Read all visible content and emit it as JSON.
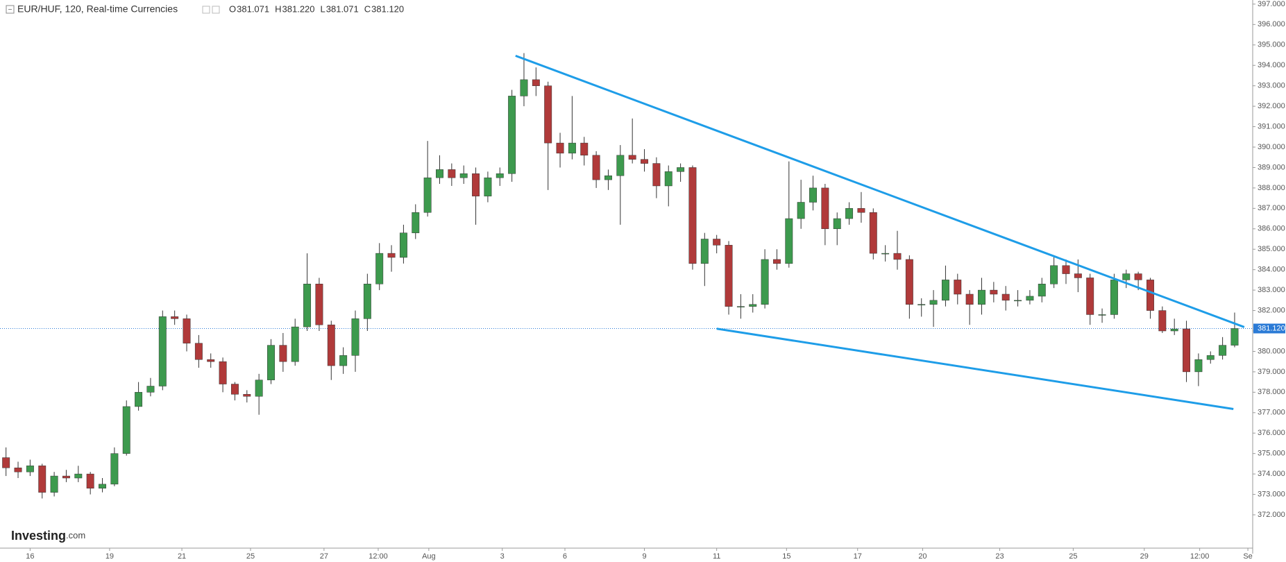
{
  "header": {
    "title": "EUR/HUF, 120, Real-time Currencies",
    "ohlc": [
      {
        "key": "O",
        "value": "381.071"
      },
      {
        "key": "H",
        "value": "381.220"
      },
      {
        "key": "L",
        "value": "381.071"
      },
      {
        "key": "C",
        "value": "381.120"
      }
    ]
  },
  "logo": {
    "name": "Investing",
    "suffix": ".com"
  },
  "chart_data": {
    "type": "candlestick",
    "up_color": "#3d9a4e",
    "down_color": "#b03a3a",
    "xlim": [
      0,
      104
    ],
    "xticks": [
      {
        "value": 2.5,
        "label": "16"
      },
      {
        "value": 9.1,
        "label": "19"
      },
      {
        "value": 15.1,
        "label": "21"
      },
      {
        "value": 20.8,
        "label": "25"
      },
      {
        "value": 26.9,
        "label": "27"
      },
      {
        "value": 31.4,
        "label": "12:00"
      },
      {
        "value": 35.6,
        "label": "Aug"
      },
      {
        "value": 41.7,
        "label": "3"
      },
      {
        "value": 46.9,
        "label": "6"
      },
      {
        "value": 53.5,
        "label": "9"
      },
      {
        "value": 59.5,
        "label": "11"
      },
      {
        "value": 65.3,
        "label": "15"
      },
      {
        "value": 71.2,
        "label": "17"
      },
      {
        "value": 76.6,
        "label": "20"
      },
      {
        "value": 83.0,
        "label": "23"
      },
      {
        "value": 89.1,
        "label": "25"
      },
      {
        "value": 95.0,
        "label": "29"
      },
      {
        "value": 99.6,
        "label": "12:00"
      },
      {
        "value": 103.6,
        "label": "Se"
      }
    ],
    "ylim": [
      370.37,
      397.2
    ],
    "yticks": [
      {
        "value": 372,
        "label": "372.000"
      },
      {
        "value": 373,
        "label": "373.000"
      },
      {
        "value": 374,
        "label": "374.000"
      },
      {
        "value": 375,
        "label": "375.000"
      },
      {
        "value": 376,
        "label": "376.000"
      },
      {
        "value": 377,
        "label": "377.000"
      },
      {
        "value": 378,
        "label": "378.000"
      },
      {
        "value": 379,
        "label": "379.000"
      },
      {
        "value": 380,
        "label": "380.000"
      },
      {
        "value": 381,
        "label": "381.000"
      },
      {
        "value": 382,
        "label": "382.000"
      },
      {
        "value": 383,
        "label": "383.000"
      },
      {
        "value": 384,
        "label": "384.000"
      },
      {
        "value": 385,
        "label": "385.000"
      },
      {
        "value": 386,
        "label": "386.000"
      },
      {
        "value": 387,
        "label": "387.000"
      },
      {
        "value": 388,
        "label": "388.000"
      },
      {
        "value": 389,
        "label": "389.000"
      },
      {
        "value": 390,
        "label": "390.000"
      },
      {
        "value": 391,
        "label": "391.000"
      },
      {
        "value": 392,
        "label": "392.000"
      },
      {
        "value": 393,
        "label": "393.000"
      },
      {
        "value": 394,
        "label": "394.000"
      },
      {
        "value": 395,
        "label": "395.000"
      },
      {
        "value": 396,
        "label": "396.000"
      },
      {
        "value": 397,
        "label": "397.000"
      }
    ],
    "last_price": {
      "value": 381.12,
      "label": "381.120",
      "color": "#2b7bd6"
    },
    "trendlines": [
      {
        "x": [
          42.8,
          103.3
        ],
        "y": [
          394.47,
          381.19
        ],
        "color": "#1e9de8"
      },
      {
        "x": [
          59.5,
          102.4
        ],
        "y": [
          381.11,
          377.18
        ],
        "color": "#1e9de8"
      }
    ],
    "ohlc": [
      [
        374.8,
        375.3,
        373.9,
        374.3
      ],
      [
        374.3,
        374.6,
        373.8,
        374.1
      ],
      [
        374.1,
        374.7,
        373.9,
        374.4
      ],
      [
        374.4,
        374.5,
        372.8,
        373.1
      ],
      [
        373.1,
        374.1,
        372.9,
        373.9
      ],
      [
        373.9,
        374.2,
        373.6,
        373.8
      ],
      [
        373.8,
        374.4,
        373.6,
        374.0
      ],
      [
        374.0,
        374.1,
        373.0,
        373.3
      ],
      [
        373.3,
        373.8,
        373.1,
        373.5
      ],
      [
        373.5,
        375.3,
        373.4,
        375.0
      ],
      [
        375.0,
        377.6,
        374.9,
        377.3
      ],
      [
        377.3,
        378.5,
        377.1,
        378.0
      ],
      [
        378.0,
        378.7,
        377.8,
        378.3
      ],
      [
        378.3,
        382.0,
        378.1,
        381.7
      ],
      [
        381.7,
        382.0,
        381.3,
        381.6
      ],
      [
        381.6,
        381.8,
        380.0,
        380.4
      ],
      [
        380.4,
        380.8,
        379.2,
        379.6
      ],
      [
        379.6,
        379.9,
        379.2,
        379.5
      ],
      [
        379.5,
        379.7,
        378.0,
        378.4
      ],
      [
        378.4,
        378.5,
        377.6,
        377.9
      ],
      [
        377.9,
        378.1,
        377.5,
        377.8
      ],
      [
        377.8,
        378.9,
        376.9,
        378.6
      ],
      [
        378.6,
        380.6,
        378.4,
        380.3
      ],
      [
        380.3,
        380.9,
        379.0,
        379.5
      ],
      [
        379.5,
        381.6,
        379.3,
        381.2
      ],
      [
        381.2,
        384.8,
        381.0,
        383.3
      ],
      [
        383.3,
        383.6,
        381.0,
        381.3
      ],
      [
        381.3,
        381.5,
        378.6,
        379.3
      ],
      [
        379.3,
        380.2,
        378.9,
        379.8
      ],
      [
        379.8,
        382.0,
        379.0,
        381.6
      ],
      [
        381.6,
        383.8,
        381.0,
        383.3
      ],
      [
        383.3,
        385.3,
        383.0,
        384.8
      ],
      [
        384.8,
        385.2,
        383.9,
        384.6
      ],
      [
        384.6,
        386.2,
        384.3,
        385.8
      ],
      [
        385.8,
        387.2,
        385.5,
        386.8
      ],
      [
        386.8,
        390.3,
        386.6,
        388.5
      ],
      [
        388.5,
        389.6,
        388.2,
        388.9
      ],
      [
        388.9,
        389.2,
        388.1,
        388.5
      ],
      [
        388.5,
        389.1,
        388.2,
        388.7
      ],
      [
        388.7,
        389.0,
        386.2,
        387.6
      ],
      [
        387.6,
        388.8,
        387.3,
        388.5
      ],
      [
        388.5,
        389.0,
        388.1,
        388.7
      ],
      [
        388.7,
        392.8,
        388.3,
        392.5
      ],
      [
        392.5,
        394.6,
        392.0,
        393.3
      ],
      [
        393.3,
        393.9,
        392.5,
        393.0
      ],
      [
        393.0,
        393.2,
        387.9,
        390.2
      ],
      [
        390.2,
        390.7,
        389.0,
        389.7
      ],
      [
        389.7,
        392.5,
        389.4,
        390.2
      ],
      [
        390.2,
        390.5,
        389.1,
        389.6
      ],
      [
        389.6,
        389.8,
        388.0,
        388.4
      ],
      [
        388.4,
        388.9,
        387.9,
        388.6
      ],
      [
        388.6,
        390.1,
        386.2,
        389.6
      ],
      [
        389.6,
        391.4,
        389.2,
        389.4
      ],
      [
        389.4,
        389.9,
        388.8,
        389.2
      ],
      [
        389.2,
        389.5,
        387.5,
        388.1
      ],
      [
        388.1,
        389.1,
        387.1,
        388.8
      ],
      [
        388.8,
        389.2,
        388.3,
        389.0
      ],
      [
        389.0,
        389.1,
        384.0,
        384.3
      ],
      [
        384.3,
        385.8,
        383.2,
        385.5
      ],
      [
        385.5,
        385.7,
        384.8,
        385.2
      ],
      [
        385.2,
        385.4,
        381.8,
        382.2
      ],
      [
        382.2,
        382.8,
        381.6,
        382.2
      ],
      [
        382.2,
        382.8,
        381.9,
        382.3
      ],
      [
        382.3,
        385.0,
        382.1,
        384.5
      ],
      [
        384.5,
        385.0,
        384.0,
        384.3
      ],
      [
        384.3,
        389.3,
        384.1,
        386.5
      ],
      [
        386.5,
        388.4,
        386.0,
        387.3
      ],
      [
        387.3,
        388.6,
        386.9,
        388.0
      ],
      [
        388.0,
        388.2,
        385.2,
        386.0
      ],
      [
        386.0,
        386.8,
        385.2,
        386.5
      ],
      [
        386.5,
        387.3,
        386.2,
        387.0
      ],
      [
        387.0,
        387.8,
        386.3,
        386.8
      ],
      [
        386.8,
        387.0,
        384.5,
        384.8
      ],
      [
        384.8,
        385.2,
        384.4,
        384.8
      ],
      [
        384.8,
        385.9,
        384.0,
        384.5
      ],
      [
        384.5,
        384.7,
        381.6,
        382.3
      ],
      [
        382.3,
        382.6,
        381.7,
        382.3
      ],
      [
        382.3,
        383.0,
        381.2,
        382.5
      ],
      [
        382.5,
        384.2,
        382.2,
        383.5
      ],
      [
        383.5,
        383.8,
        382.3,
        382.8
      ],
      [
        382.8,
        383.0,
        381.3,
        382.3
      ],
      [
        382.3,
        383.6,
        381.8,
        383.0
      ],
      [
        383.0,
        383.4,
        382.4,
        382.8
      ],
      [
        382.8,
        383.2,
        382.0,
        382.5
      ],
      [
        382.5,
        383.0,
        382.2,
        382.5
      ],
      [
        382.5,
        383.0,
        382.3,
        382.7
      ],
      [
        382.7,
        383.6,
        382.4,
        383.3
      ],
      [
        383.3,
        384.7,
        383.1,
        384.2
      ],
      [
        384.2,
        384.5,
        383.3,
        383.8
      ],
      [
        383.8,
        384.5,
        382.9,
        383.6
      ],
      [
        383.6,
        383.8,
        381.3,
        381.8
      ],
      [
        381.8,
        382.1,
        381.4,
        381.8
      ],
      [
        381.8,
        383.8,
        381.6,
        383.5
      ],
      [
        383.5,
        384.0,
        383.1,
        383.8
      ],
      [
        383.8,
        383.9,
        383.0,
        383.5
      ],
      [
        383.5,
        383.6,
        381.6,
        382.0
      ],
      [
        382.0,
        382.2,
        380.9,
        381.0
      ],
      [
        381.0,
        381.6,
        380.8,
        381.1
      ],
      [
        381.1,
        381.5,
        378.5,
        379.0
      ],
      [
        379.0,
        379.9,
        378.3,
        379.6
      ],
      [
        379.6,
        380.0,
        379.4,
        379.8
      ],
      [
        379.8,
        380.7,
        379.6,
        380.3
      ],
      [
        380.3,
        381.9,
        380.2,
        381.12
      ]
    ]
  }
}
